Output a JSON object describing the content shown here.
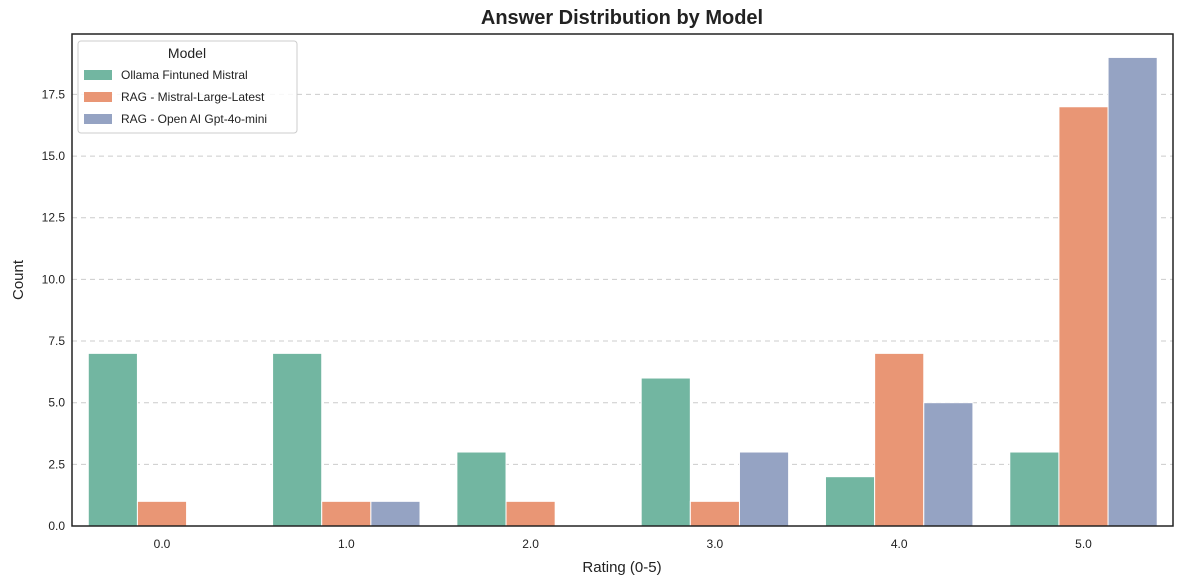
{
  "chart_data": {
    "type": "bar",
    "title": "Answer Distribution by Model",
    "xlabel": "Rating (0-5)",
    "ylabel": "Count",
    "categories": [
      "0.0",
      "1.0",
      "2.0",
      "3.0",
      "4.0",
      "5.0"
    ],
    "ylim": [
      0,
      19.95
    ],
    "yticks": [
      0.0,
      2.5,
      5.0,
      7.5,
      10.0,
      12.5,
      15.0,
      17.5
    ],
    "ytick_labels": [
      "0.0",
      "2.5",
      "5.0",
      "7.5",
      "10.0",
      "12.5",
      "15.0",
      "17.5"
    ],
    "grid": "y-dashed",
    "legend": {
      "title": "Model",
      "position": "top-left"
    },
    "series": [
      {
        "name": "Ollama Fintuned Mistral",
        "color": "#72b6a1",
        "values": [
          7,
          7,
          3,
          6,
          2,
          3
        ]
      },
      {
        "name": "RAG - Mistral-Large-Latest",
        "color": "#e99675",
        "values": [
          1,
          1,
          1,
          1,
          7,
          17
        ]
      },
      {
        "name": "RAG - Open AI Gpt-4o-mini",
        "color": "#95a3c3",
        "values": [
          0,
          1,
          0,
          3,
          5,
          19
        ]
      }
    ]
  }
}
